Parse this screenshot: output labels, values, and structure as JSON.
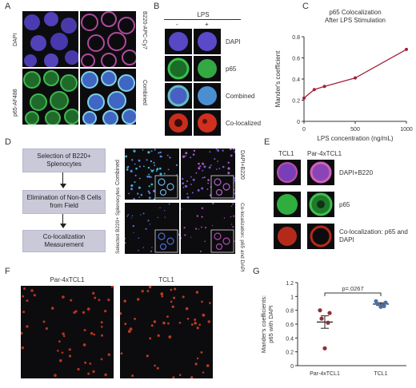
{
  "panel_letters": {
    "a": "A",
    "b": "B",
    "c": "C",
    "d": "D",
    "e": "E",
    "f": "F",
    "g": "G"
  },
  "panel_a": {
    "labels": {
      "dapi": "DAPI",
      "b220": "B220-APC-Cy7",
      "p65": "p65-AF488",
      "combined": "Combined"
    }
  },
  "panel_b": {
    "header": "LPS",
    "minus": "-",
    "plus": "+",
    "rows": [
      "DAPI",
      "p65",
      "Combined",
      "Co-localized"
    ]
  },
  "panel_c": {
    "chart_data": {
      "type": "line",
      "title": "p65 Colocalization After LPS Stimulation",
      "title_lines": [
        "p65 Colocalization",
        "After LPS Stimulation"
      ],
      "xlabel": "LPS concentration (ng/mL)",
      "ylabel": "Mander's coefficient",
      "x": [
        0,
        100,
        200,
        500,
        1000
      ],
      "y": [
        0.22,
        0.3,
        0.33,
        0.41,
        0.68
      ],
      "xlim": [
        0,
        1000
      ],
      "ylim": [
        0,
        0.8
      ],
      "xticks": [
        0,
        500,
        1000
      ],
      "yticks": [
        0,
        0.2,
        0.4,
        0.6,
        0.8
      ],
      "xtick_labels": [
        "0",
        "500",
        "1000"
      ],
      "ytick_labels": [
        "0",
        "0.2",
        "0.4",
        "0.6",
        "0.8"
      ],
      "color": "#a3203a",
      "grid": false
    }
  },
  "panel_d": {
    "steps": [
      "Selection of B220+ Splenocytes",
      "Elimination of Non-B Cells from Field",
      "Co-localization Measurement"
    ],
    "labels": {
      "combined": "Combined",
      "dapi_b220": "DAPI+B220",
      "selected": "Selected B220+ Splenocytes",
      "coloc": "Co-localization: p65 and DAPI"
    }
  },
  "panel_e": {
    "cols": [
      "TCL1",
      "Par-4xTCL1"
    ],
    "rows": [
      "DAPI+B220",
      "p65",
      "Co-localization: p65 and DAPI"
    ]
  },
  "panel_f": {
    "titles": [
      "Par-4xTCL1",
      "TCL1"
    ]
  },
  "panel_g": {
    "chart_data": {
      "type": "scatter",
      "ylabel": "Mander's coefficients: p65 with DAPI",
      "ylabel_lines": [
        "Mander's coefficients:",
        "p65 with DAPI"
      ],
      "categories": [
        "Par-4xTCL1",
        "TCL1"
      ],
      "series": [
        {
          "name": "Par-4xTCL1",
          "values": [
            0.8,
            0.76,
            0.68,
            0.62,
            0.25
          ],
          "mean": 0.63,
          "sem": 0.09,
          "color": "#8c2f39"
        },
        {
          "name": "TCL1",
          "values": [
            0.93,
            0.91,
            0.89,
            0.86,
            0.85
          ],
          "mean": 0.89,
          "sem": 0.02,
          "color": "#4a6fa5"
        }
      ],
      "ylim": [
        0,
        1.2
      ],
      "yticks": [
        0,
        0.2,
        0.4,
        0.6,
        0.8,
        1.0,
        1.2
      ],
      "ytick_labels": [
        "0",
        "0.2",
        "0.4",
        "0.6",
        "0.8",
        "1",
        "1.2"
      ],
      "annotation": "p=.0267",
      "grid": false
    }
  }
}
